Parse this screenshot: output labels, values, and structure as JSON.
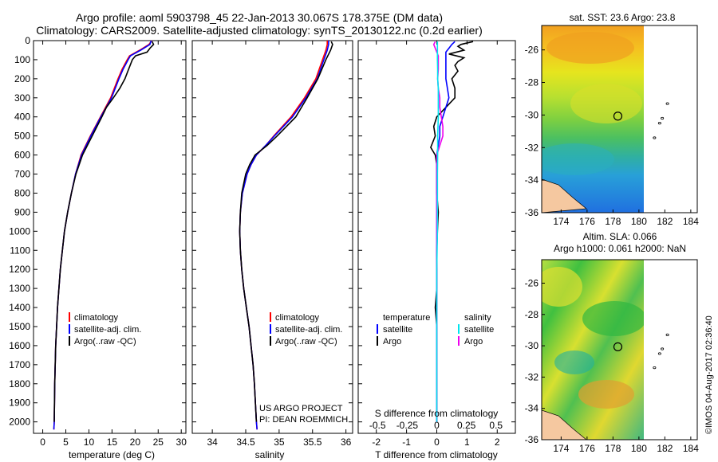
{
  "header": {
    "title_line1": "Argo profile: aoml 5903798_45 22-Jan-2013 30.067S 178.375E (DM data)",
    "title_line2": "Climatology: CARS2009. Satellite-adjusted climatology: synTS_20130122.nc (0.2d earlier)"
  },
  "colors": {
    "climatology": "#ff0000",
    "satellite_adj": "#0000ff",
    "argo": "#000000",
    "salinity_satellite": "#00e5ee",
    "salinity_argo": "#ee00ee"
  },
  "chart_data": [
    {
      "type": "line",
      "panel": "temperature",
      "xlabel": "temperature (deg C)",
      "ylabel": "",
      "xlim": [
        -2,
        31
      ],
      "ylim": [
        2060,
        0
      ],
      "y_reversed": true,
      "xticks": [
        0,
        5,
        10,
        15,
        20,
        25,
        30
      ],
      "yticks": [
        0,
        100,
        200,
        300,
        400,
        500,
        600,
        700,
        800,
        900,
        1000,
        1100,
        1200,
        1300,
        1400,
        1500,
        1600,
        1700,
        1800,
        1900,
        2000
      ],
      "legend": [
        "climatology",
        "satellite-adj. clim.",
        "Argo(..raw -QC)"
      ],
      "series": [
        {
          "name": "climatology",
          "color": "#ff0000",
          "depth": [
            0,
            20,
            50,
            80,
            100,
            150,
            200,
            300,
            400,
            500,
            600,
            700,
            800,
            900,
            1000,
            1200,
            1400,
            1600,
            1800,
            2000,
            2040
          ],
          "values": [
            23.6,
            23.0,
            21.0,
            18.8,
            18.3,
            17.2,
            16.3,
            14.7,
            12.5,
            10.3,
            8.3,
            7.1,
            6.2,
            5.4,
            4.7,
            3.8,
            3.2,
            2.8,
            2.6,
            2.5,
            2.4
          ]
        },
        {
          "name": "satellite-adj. clim.",
          "color": "#0000ff",
          "depth": [
            0,
            20,
            50,
            80,
            100,
            150,
            200,
            300,
            400,
            500,
            600,
            700,
            800,
            900,
            1000,
            1200,
            1400,
            1600,
            1800,
            2000,
            2040
          ],
          "values": [
            23.5,
            23.2,
            21.2,
            19.0,
            18.5,
            17.4,
            16.5,
            14.9,
            12.6,
            10.4,
            8.4,
            7.1,
            6.2,
            5.4,
            4.7,
            3.8,
            3.2,
            2.8,
            2.6,
            2.5,
            2.4
          ]
        },
        {
          "name": "Argo(..raw -QC)",
          "color": "#000000",
          "depth": [
            5,
            20,
            40,
            60,
            80,
            100,
            150,
            200,
            250,
            300,
            350,
            400,
            500,
            600,
            700,
            800,
            900,
            1000,
            1200,
            1400,
            1600,
            1800,
            2000
          ],
          "values": [
            23.7,
            24.0,
            23.2,
            22.6,
            20.1,
            19.4,
            18.6,
            17.8,
            16.7,
            15.3,
            13.8,
            12.8,
            10.7,
            8.6,
            7.2,
            6.2,
            5.4,
            4.7,
            3.8,
            3.2,
            2.8,
            2.6,
            2.5
          ]
        }
      ]
    },
    {
      "type": "line",
      "panel": "salinity",
      "xlabel": "salinity",
      "ylabel": "",
      "xlim": [
        33.7,
        36.1
      ],
      "ylim": [
        2060,
        0
      ],
      "y_reversed": true,
      "xticks": [
        34,
        34.5,
        35,
        35.5,
        36
      ],
      "xtick_labels": [
        "34",
        "34.5",
        "35",
        "35.5",
        "36"
      ],
      "legend": [
        "climatology",
        "satellite-adj. clim.",
        "Argo(..raw -QC)"
      ],
      "series": [
        {
          "name": "climatology",
          "color": "#ff0000",
          "depth": [
            0,
            20,
            50,
            100,
            200,
            300,
            400,
            500,
            550,
            600,
            650,
            700,
            800,
            900,
            1000,
            1100,
            1200,
            1300,
            1400,
            1500,
            1600,
            1700,
            1800,
            2000,
            2040
          ],
          "values": [
            35.72,
            35.72,
            35.7,
            35.65,
            35.55,
            35.38,
            35.18,
            34.92,
            34.8,
            34.66,
            34.58,
            34.52,
            34.45,
            34.42,
            34.41,
            34.42,
            34.44,
            34.47,
            34.51,
            34.55,
            34.58,
            34.61,
            34.63,
            34.66,
            34.67
          ]
        },
        {
          "name": "satellite-adj. clim.",
          "color": "#0000ff",
          "depth": [
            0,
            20,
            50,
            100,
            200,
            300,
            400,
            500,
            550,
            600,
            650,
            700,
            800,
            900,
            1000,
            1100,
            1200,
            1300,
            1400,
            1500,
            1600,
            1700,
            1800,
            2000,
            2040
          ],
          "values": [
            35.74,
            35.74,
            35.72,
            35.67,
            35.57,
            35.4,
            35.2,
            34.93,
            34.8,
            34.66,
            34.58,
            34.52,
            34.45,
            34.42,
            34.41,
            34.42,
            34.44,
            34.47,
            34.51,
            34.55,
            34.58,
            34.61,
            34.63,
            34.66,
            34.67
          ]
        },
        {
          "name": "Argo(..raw -QC)",
          "color": "#000000",
          "depth": [
            5,
            20,
            50,
            100,
            200,
            300,
            400,
            500,
            550,
            600,
            650,
            700,
            800,
            900,
            1000,
            1100,
            1200,
            1300,
            1400,
            1500,
            1600,
            1700,
            1800,
            2000
          ],
          "values": [
            35.78,
            35.8,
            35.77,
            35.7,
            35.58,
            35.42,
            35.25,
            34.97,
            34.82,
            34.64,
            34.56,
            34.5,
            34.44,
            34.42,
            34.41,
            34.42,
            34.44,
            34.47,
            34.51,
            34.55,
            34.58,
            34.61,
            34.63,
            34.66
          ]
        }
      ],
      "annotation": [
        "US ARGO PROJECT",
        "PI: DEAN ROEMMICH"
      ]
    },
    {
      "type": "line",
      "panel": "differences",
      "xlabel": "T difference from climatology",
      "xlabel_top": "S difference from climatology",
      "xlim": [
        -2.6,
        2.6
      ],
      "ylim": [
        2060,
        0
      ],
      "y_reversed": true,
      "xticks": [
        -2,
        -1,
        0,
        1,
        2
      ],
      "xtick_labels": [
        "-2",
        "-1",
        "0",
        "1",
        "2"
      ],
      "sticks": [
        -0.5,
        -0.25,
        0,
        0.25,
        0.5
      ],
      "stick_labels": [
        "-0.5",
        "-0.25",
        "0",
        "0.25",
        "0.5"
      ],
      "legend_temperature": {
        "heading": "temperature",
        "items": [
          "satellite",
          "Argo"
        ]
      },
      "legend_salinity": {
        "heading": "salinity",
        "items": [
          "satellite",
          "Argo"
        ]
      },
      "series": [
        {
          "name": "temperature Argo",
          "color": "#000000",
          "depth": [
            5,
            20,
            30,
            50,
            70,
            90,
            110,
            130,
            160,
            200,
            250,
            300,
            350,
            400,
            450,
            500,
            560,
            600,
            650,
            700,
            800,
            900,
            1000,
            1100,
            1200,
            1300,
            1400,
            1500,
            1600,
            1800,
            2000
          ],
          "values": [
            1.2,
            0.8,
            0.7,
            0.9,
            0.4,
            0.9,
            0.7,
            0.6,
            0.7,
            0.5,
            0.6,
            0.6,
            0.3,
            0.0,
            -0.1,
            -0.05,
            -0.2,
            -0.05,
            0.0,
            0.0,
            0.0,
            0.05,
            0.02,
            0.0,
            0.0,
            0.0,
            -0.05,
            0.0,
            0.0,
            0.0,
            0.0
          ]
        },
        {
          "name": "temperature satellite",
          "color": "#0000ff",
          "depth": [
            5,
            20,
            40,
            60,
            80,
            100,
            150,
            200,
            250,
            300,
            350,
            400,
            450,
            500,
            550,
            600,
            700,
            800,
            1000,
            1200,
            1400,
            1600,
            1800,
            2000
          ],
          "values": [
            0.6,
            0.5,
            0.4,
            0.3,
            0.3,
            0.3,
            0.3,
            0.3,
            0.35,
            0.4,
            0.3,
            0.2,
            0.1,
            0.1,
            0.05,
            0.0,
            0.0,
            0.0,
            0.0,
            0.0,
            0.0,
            0.0,
            0.0,
            0.0
          ]
        },
        {
          "name": "salinity Argo",
          "color": "#ee00ee",
          "depth": [
            5,
            20,
            40,
            60,
            80,
            100,
            150,
            200,
            250,
            300,
            350,
            400,
            450,
            500,
            550,
            600,
            700,
            800,
            1000,
            1200,
            1400,
            1600,
            1800,
            2000
          ],
          "values": [
            -0.05,
            -0.1,
            -0.05,
            0.0,
            0.05,
            0.05,
            0.05,
            0.03,
            0.05,
            0.1,
            0.1,
            0.15,
            0.2,
            0.2,
            0.1,
            0.0,
            0.0,
            0.0,
            0.0,
            0.0,
            0.0,
            0.0,
            0.0,
            0.0
          ]
        },
        {
          "name": "salinity satellite",
          "color": "#00e5ee",
          "depth": [
            5,
            20,
            40,
            60,
            80,
            100,
            150,
            200,
            250,
            300,
            350,
            400,
            500,
            600,
            700,
            800,
            1000,
            1200,
            1400,
            1600,
            1800,
            2000
          ],
          "values": [
            0.02,
            0.02,
            0.02,
            0.02,
            0.02,
            0.02,
            0.03,
            0.03,
            0.05,
            0.05,
            0.05,
            0.05,
            0.03,
            0.03,
            0.02,
            0.02,
            0.02,
            0.0,
            0.0,
            0.0,
            0.0,
            0.0
          ]
        }
      ]
    },
    {
      "type": "heatmap",
      "panel": "map-sst",
      "title": "sat. SST: 23.6 Argo: 23.8",
      "xlim": [
        172.5,
        184.5
      ],
      "ylim": [
        -36,
        -24.5
      ],
      "xticks": [
        174,
        176,
        178,
        180,
        182,
        184
      ],
      "yticks": [
        -26,
        -28,
        -30,
        -32,
        -34,
        -36
      ],
      "data_extent_east": 180.3,
      "argo_position": [
        178.375,
        -30.067
      ],
      "islands": [
        [
          182.2,
          -29.3
        ],
        [
          181.8,
          -30.2
        ],
        [
          181.6,
          -30.5
        ],
        [
          181.2,
          -31.4
        ]
      ]
    },
    {
      "type": "heatmap",
      "panel": "map-sla",
      "title_line1": "Altim. SLA: 0.066",
      "title_line2": "Argo h1000: 0.061 h2000: NaN",
      "xlim": [
        172.5,
        184.5
      ],
      "ylim": [
        -36,
        -24.5
      ],
      "xticks": [
        174,
        176,
        178,
        180,
        182,
        184
      ],
      "yticks": [
        -26,
        -28,
        -30,
        -32,
        -34,
        -36
      ],
      "data_extent_east": 180.3,
      "argo_position": [
        178.375,
        -30.067
      ],
      "islands": [
        [
          182.2,
          -29.3
        ],
        [
          181.8,
          -30.2
        ],
        [
          181.6,
          -30.5
        ],
        [
          181.2,
          -31.4
        ]
      ]
    }
  ],
  "footer_stamp": "©IMOS 04-Aug-2017 02:36:40"
}
